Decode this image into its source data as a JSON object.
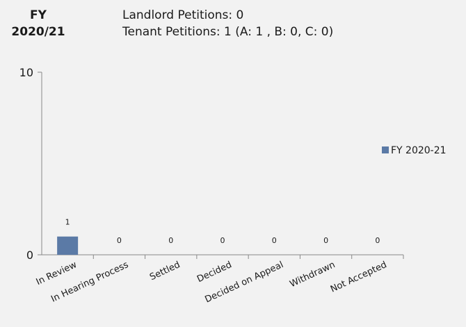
{
  "header": {
    "fy_line1": "FY",
    "fy_line2": "2020/21",
    "landlord": "Landlord Petitions: 0",
    "tenant": "Tenant Petitions: 1 (A: 1 , B: 0, C: 0)"
  },
  "chart_data": {
    "type": "bar",
    "categories": [
      "In Review",
      "In Hearing Process",
      "Settled",
      "Decided",
      "Decided on Appeal",
      "Withdrawn",
      "Not Accepted"
    ],
    "series": [
      {
        "name": "FY 2020-21",
        "values": [
          1,
          0,
          0,
          0,
          0,
          0,
          0
        ],
        "color": "#5b7aa6"
      }
    ],
    "ylim": [
      0,
      10
    ],
    "y_ticks": [
      0,
      10
    ],
    "grid": false,
    "legend": "right",
    "data_labels": true
  }
}
